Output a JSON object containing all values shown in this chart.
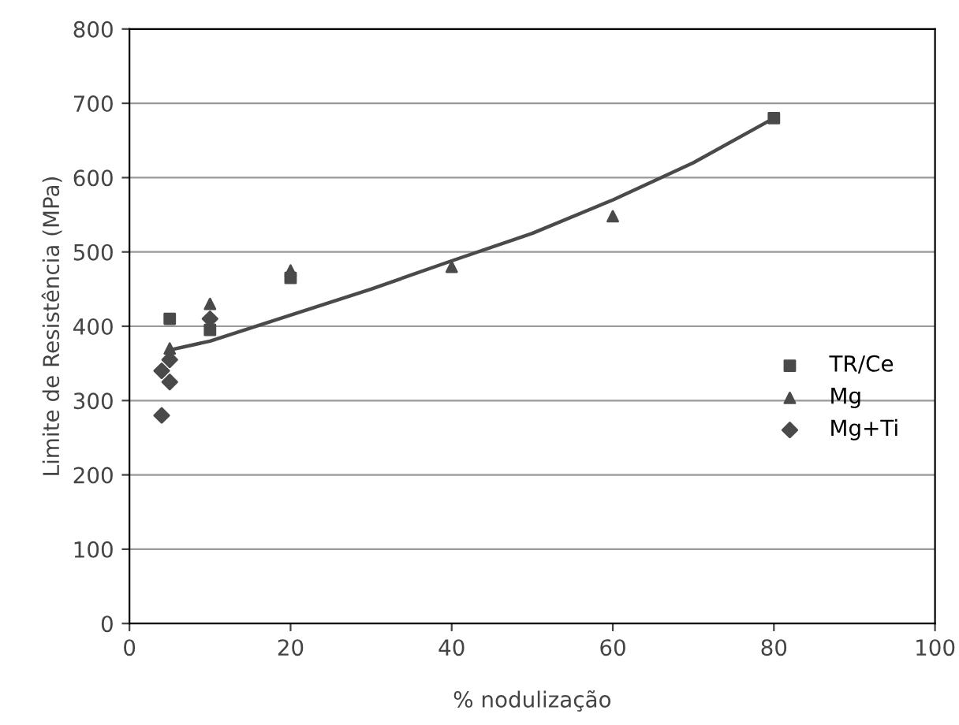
{
  "chart_data": {
    "type": "scatter",
    "xlabel": "% nodulização",
    "ylabel": "Limite de Resistência (MPa)",
    "xlim": [
      0,
      100
    ],
    "ylim": [
      0,
      800
    ],
    "xticks": [
      0,
      20,
      40,
      60,
      80,
      100
    ],
    "yticks": [
      0,
      100,
      200,
      300,
      400,
      500,
      600,
      700,
      800
    ],
    "grid": "y",
    "legend": "right",
    "series": [
      {
        "name": "TR/Ce",
        "color": "#4a4a4a",
        "marker": "square",
        "x": [
          5,
          10,
          20,
          80
        ],
        "values": [
          410,
          395,
          465,
          680
        ]
      },
      {
        "name": "Mg",
        "color": "#4a4a4a",
        "marker": "triangle",
        "x": [
          5,
          10,
          20,
          40,
          60
        ],
        "values": [
          370,
          430,
          475,
          480,
          548
        ]
      },
      {
        "name": "Mg+Ti",
        "color": "#4a4a4a",
        "marker": "diamond",
        "x": [
          4,
          4,
          5,
          5,
          10
        ],
        "values": [
          280,
          340,
          325,
          355,
          410
        ]
      },
      {
        "type": "line",
        "color": "#4a4a4a",
        "marker": "none",
        "x": [
          5,
          10,
          20,
          30,
          40,
          50,
          60,
          70,
          80
        ],
        "values": [
          368,
          380,
          415,
          450,
          488,
          525,
          570,
          620,
          680
        ]
      }
    ]
  }
}
